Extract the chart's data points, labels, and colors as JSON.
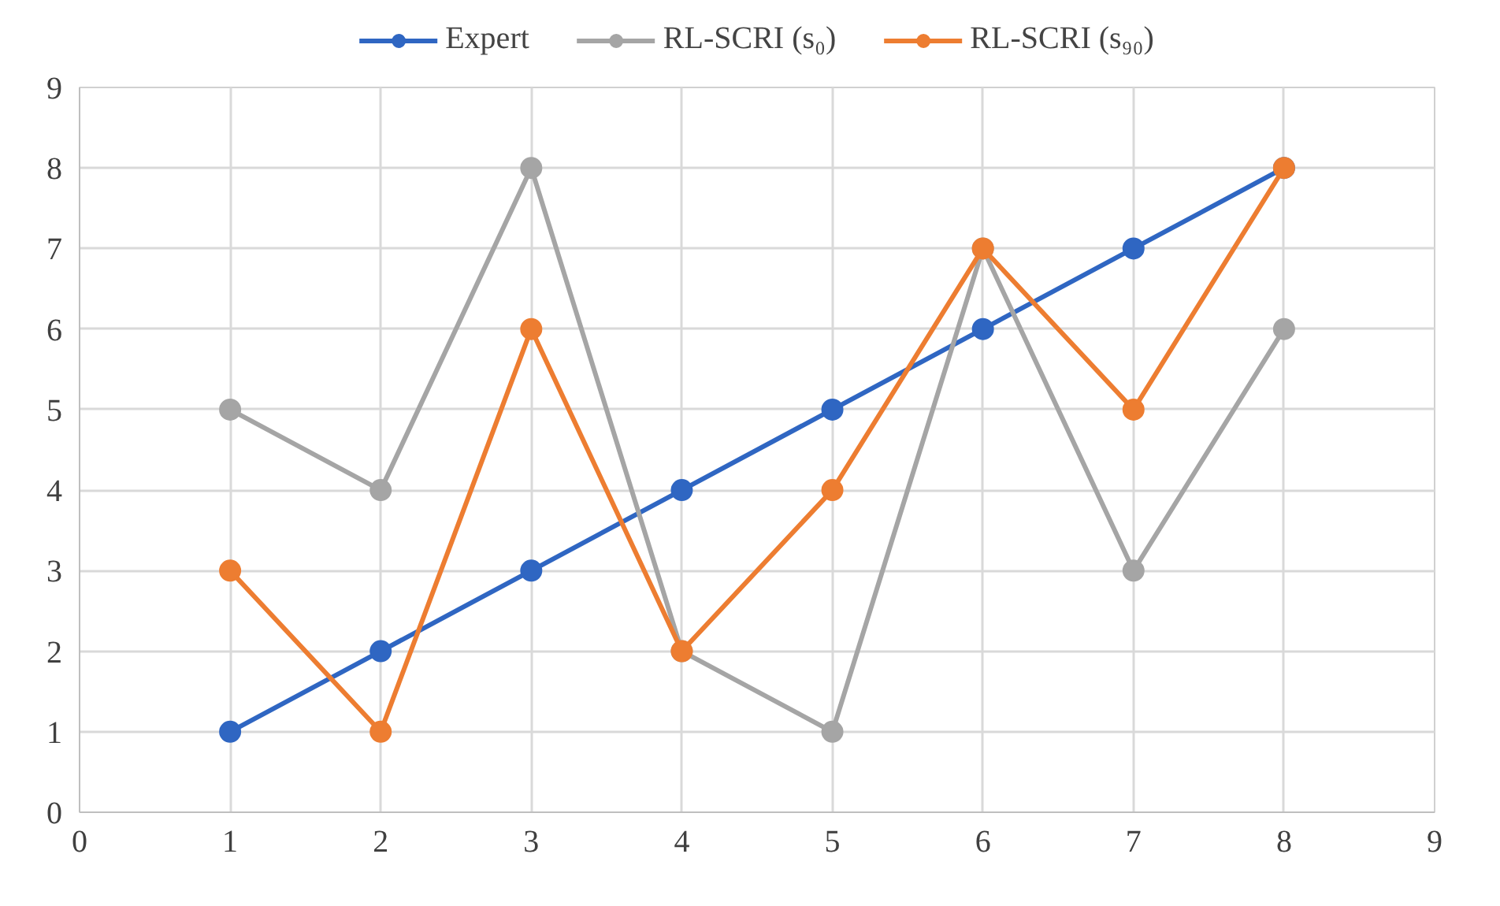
{
  "chart_data": {
    "type": "line",
    "x": [
      1,
      2,
      3,
      4,
      5,
      6,
      7,
      8
    ],
    "series": [
      {
        "name": "Expert",
        "color": "#2f66c2",
        "values": [
          1,
          2,
          3,
          4,
          5,
          6,
          7,
          8
        ]
      },
      {
        "name": "RL-SCRI (s₀)",
        "color": "#a5a5a5",
        "values": [
          5,
          4,
          8,
          2,
          1,
          7,
          3,
          6
        ]
      },
      {
        "name": "RL-SCRI (s₉₀)",
        "color": "#ed7d31",
        "values": [
          3,
          1,
          6,
          2,
          4,
          7,
          5,
          8
        ]
      }
    ],
    "xlim": [
      0,
      9
    ],
    "ylim": [
      0,
      9
    ],
    "xticks": [
      0,
      1,
      2,
      3,
      4,
      5,
      6,
      7,
      8,
      9
    ],
    "yticks": [
      0,
      1,
      2,
      3,
      4,
      5,
      6,
      7,
      8,
      9
    ],
    "grid": true,
    "legend": "top",
    "marker": "circle",
    "line_style": "solid"
  }
}
